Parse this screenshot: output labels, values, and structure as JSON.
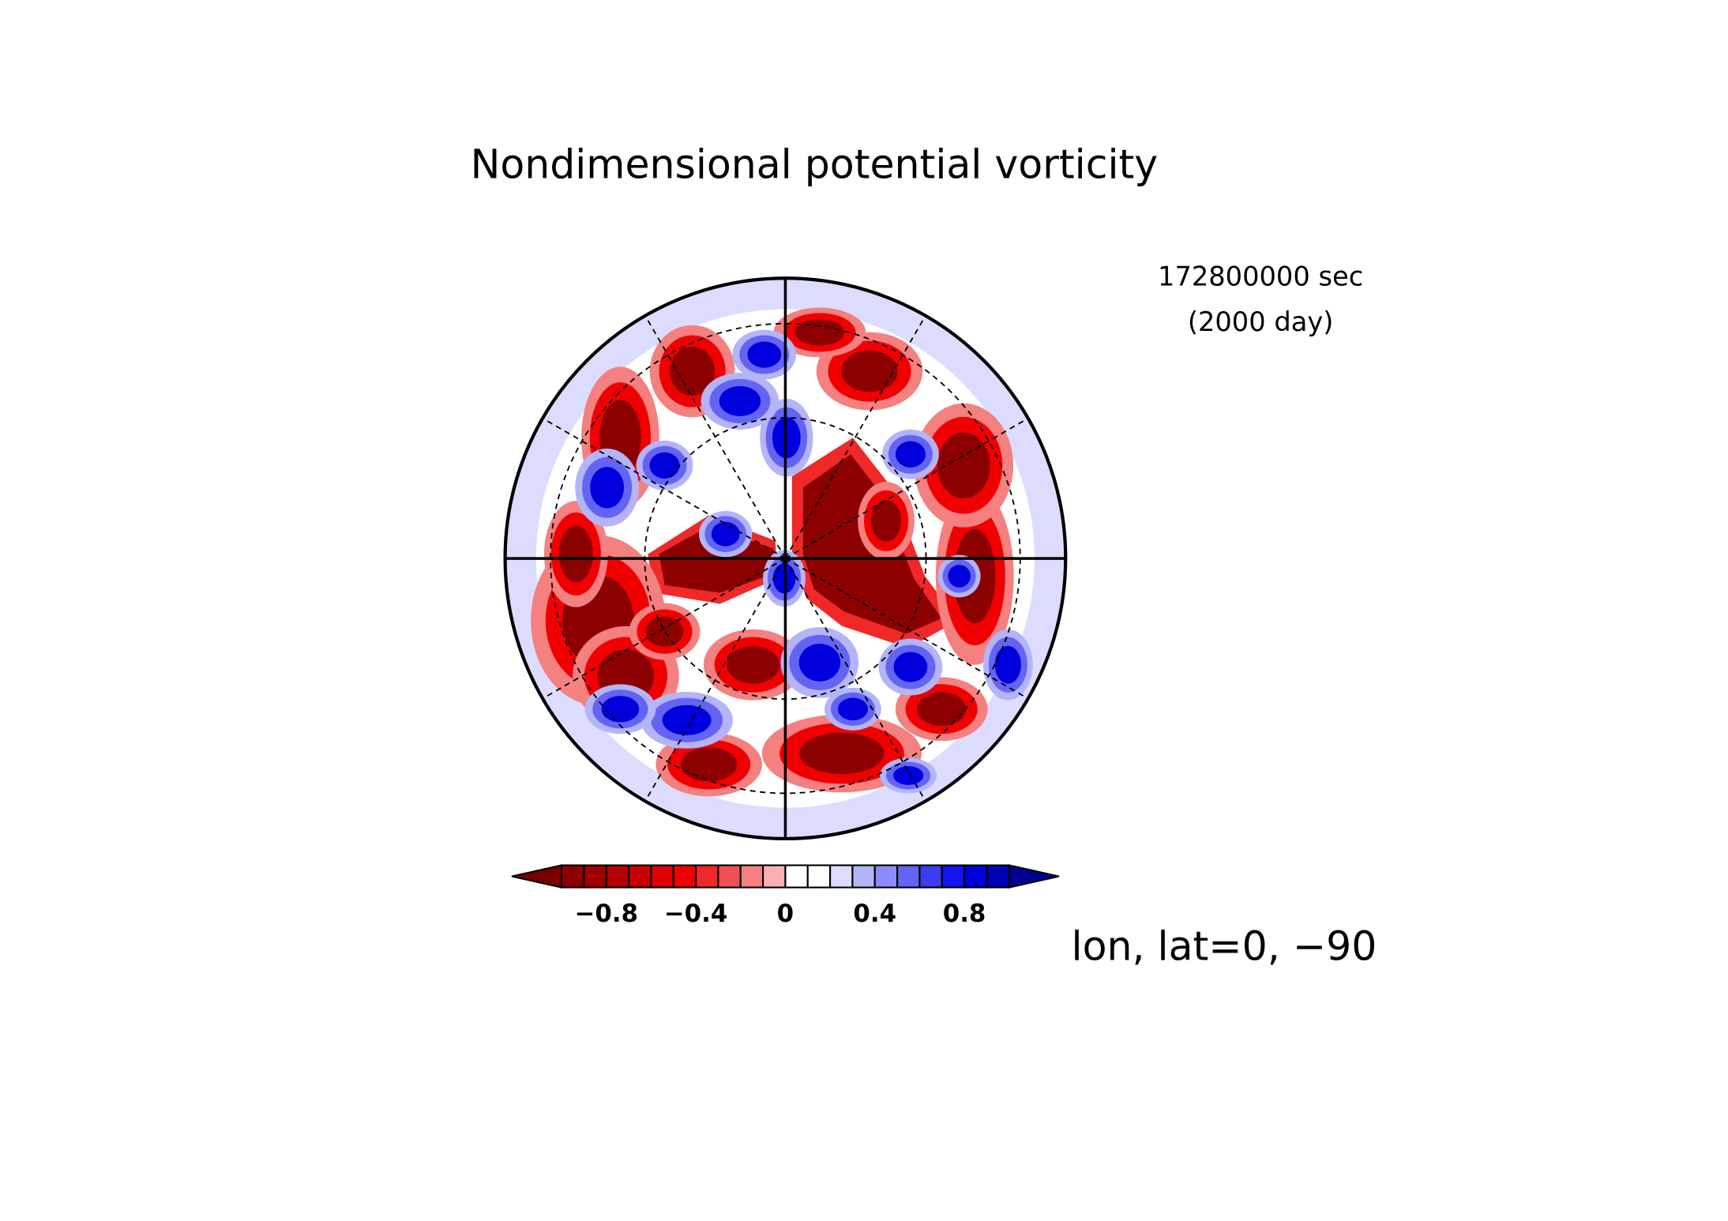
{
  "chart_data": {
    "type": "contour",
    "title": "Nondimensional potential vorticity",
    "annotations": [
      "172800000 sec",
      "(2000 day)"
    ],
    "axis_label": "lon, lat=0, −90",
    "colorbar": {
      "clim": [
        -1.0,
        1.0
      ],
      "levels": [
        -1.0,
        -0.9,
        -0.8,
        -0.7,
        -0.6,
        -0.5,
        -0.4,
        -0.3,
        -0.2,
        -0.1,
        0,
        0.1,
        0.2,
        0.3,
        0.4,
        0.5,
        0.6,
        0.7,
        0.8,
        0.9,
        1.0
      ],
      "colors": [
        "#780000",
        "#8c0000",
        "#a00000",
        "#b40000",
        "#c80000",
        "#dc0000",
        "#f00000",
        "#f02828",
        "#f05050",
        "#f48080",
        "#f8b0b0",
        "#ffffff",
        "#ffffff",
        "#dcdcff",
        "#b4b4fa",
        "#8c8cf8",
        "#6464f4",
        "#3c3cf0",
        "#1414f0",
        "#0000dc",
        "#0000b4",
        "#000096"
      ],
      "ticks": [
        {
          "value": -0.8,
          "label": "−0.8"
        },
        {
          "value": -0.4,
          "label": "−0.4"
        },
        0,
        0.4,
        0.8
      ]
    }
  }
}
